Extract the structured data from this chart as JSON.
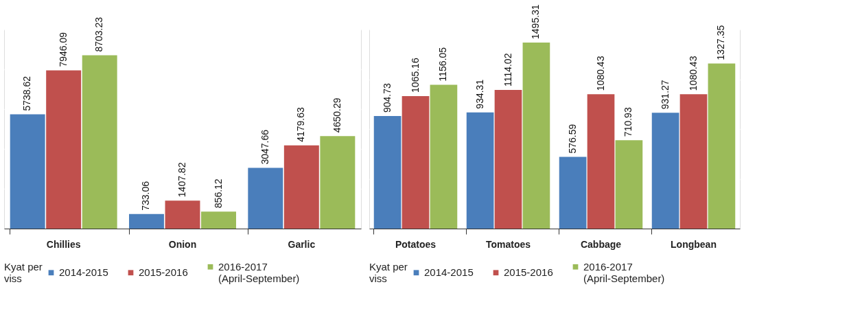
{
  "chart_data": [
    {
      "type": "bar",
      "categories": [
        "Chillies",
        "Onion",
        "Garlic"
      ],
      "legend_title": "Kyat per\nviss",
      "legend": "bottom",
      "grid": "y",
      "tick_labels": "x",
      "data_labels": true,
      "ylim": [
        0,
        10000
      ],
      "yticks": [
        {
          "value": 0,
          "label": null
        },
        {
          "value": 2000,
          "label": null
        },
        {
          "value": 4000,
          "label": null
        },
        {
          "value": 6000,
          "label": null
        },
        {
          "value": 8000,
          "label": null
        },
        {
          "value": 10000,
          "label": null
        }
      ],
      "series": [
        {
          "name": "2014-2015",
          "color": "#4a7ebb",
          "values": [
            5738.62,
            733.06,
            3047.66
          ]
        },
        {
          "name": "2015-2016",
          "color": "#c0504d",
          "values": [
            7946.09,
            1407.82,
            4179.63
          ]
        },
        {
          "name": "2016-2017\n(April-September)",
          "color": "#9bbb59",
          "values": [
            8703.23,
            856.12,
            4650.29
          ]
        }
      ]
    },
    {
      "type": "bar",
      "categories": [
        "Potatoes",
        "Tomatoes",
        "Cabbage",
        "Longbean"
      ],
      "legend_title": "Kyat per\nviss",
      "legend": "bottom",
      "grid": "y",
      "tick_labels": "x",
      "data_labels": true,
      "ylim": [
        0,
        1600
      ],
      "yticks": [
        {
          "value": 0,
          "label": null
        },
        {
          "value": 400,
          "label": null
        },
        {
          "value": 800,
          "label": null
        },
        {
          "value": 1200,
          "label": null
        },
        {
          "value": 1600,
          "label": null
        }
      ],
      "series": [
        {
          "name": "2014-2015",
          "color": "#4a7ebb",
          "values": [
            904.73,
            934.31,
            576.59,
            931.27
          ]
        },
        {
          "name": "2015-2016",
          "color": "#c0504d",
          "values": [
            1065.16,
            1114.02,
            1080.43,
            1080.43
          ]
        },
        {
          "name": "2016-2017\n(April-September)",
          "color": "#9bbb59",
          "values": [
            1156.05,
            1495.31,
            710.93,
            1327.35
          ]
        }
      ]
    }
  ]
}
